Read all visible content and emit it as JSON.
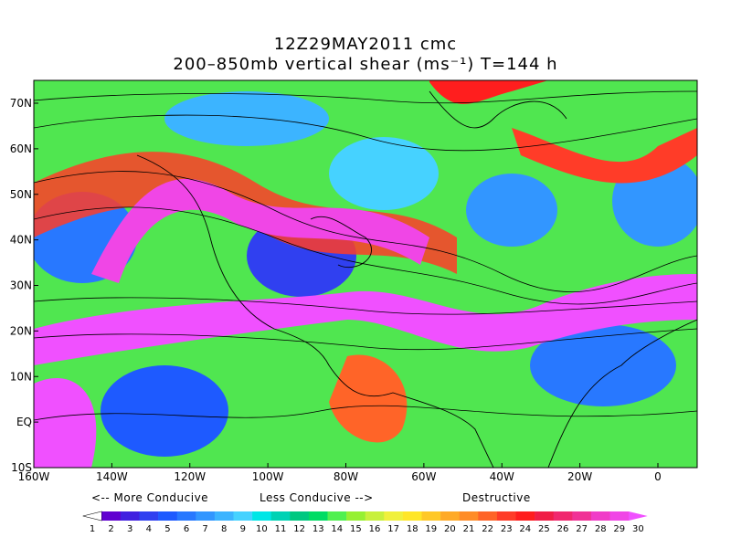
{
  "header": {
    "title": "12Z29MAY2011 cmc",
    "subtitle": "200–850mb vertical shear (ms⁻¹) T=144 h"
  },
  "map": {
    "lon_labels": [
      "160W",
      "140W",
      "120W",
      "100W",
      "80W",
      "60W",
      "40W",
      "20W",
      "0"
    ],
    "lat_labels": [
      "70N",
      "60N",
      "50N",
      "40N",
      "30N",
      "20N",
      "10N",
      "EQ",
      "10S"
    ]
  },
  "captions": {
    "more": "<-- More Conducive",
    "less": "Less Conducive -->",
    "destructive": "Destructive"
  },
  "legend": {
    "labels": [
      1,
      2,
      3,
      4,
      5,
      6,
      7,
      8,
      9,
      10,
      11,
      12,
      13,
      14,
      15,
      16,
      17,
      18,
      19,
      20,
      21,
      22,
      23,
      24,
      25,
      26,
      27,
      28,
      29,
      30
    ],
    "colors": [
      "#ffffff",
      "#6000d0",
      "#4020e0",
      "#3040f0",
      "#1e5aff",
      "#2878ff",
      "#3296ff",
      "#3cb4ff",
      "#46d2ff",
      "#00e6e6",
      "#00d2b4",
      "#00c880",
      "#00dc64",
      "#50f050",
      "#96f032",
      "#c8f03c",
      "#f0f03c",
      "#ffe628",
      "#ffc828",
      "#ffaa28",
      "#ff8c28",
      "#ff6428",
      "#ff3c28",
      "#ff1e1e",
      "#f01e46",
      "#f0286e",
      "#f03296",
      "#f03cc8",
      "#f046e6",
      "#f050ff"
    ]
  }
}
